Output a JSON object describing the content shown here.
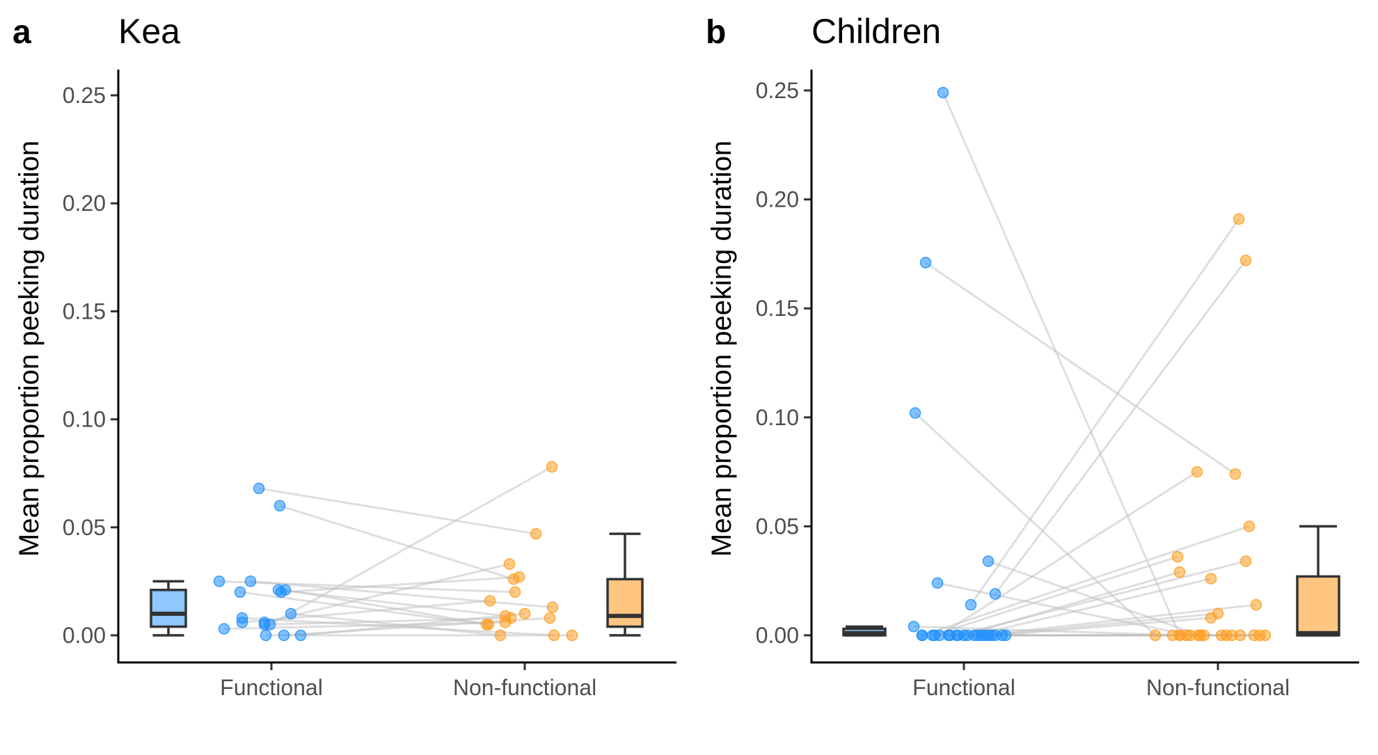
{
  "colors": {
    "functional": "#1e8fff",
    "non_functional": "#ff9e20",
    "box_functional": "#8ec8ff",
    "box_non_functional": "#ffc682",
    "pair_line": "#bebebe"
  },
  "chart_data": [
    {
      "type": "scatter",
      "panel_letter": "a",
      "title": "Kea",
      "xlabel": "",
      "ylabel": "Mean proportion peeking duration",
      "categories": [
        "Functional",
        "Non-functional"
      ],
      "yticks": [
        "0.00",
        "0.05",
        "0.10",
        "0.15",
        "0.20",
        "0.25"
      ],
      "ylim": [
        -0.012,
        0.262
      ],
      "grid": false,
      "pairs": [
        {
          "functional": 0.068,
          "non_functional": 0.047
        },
        {
          "functional": 0.06,
          "non_functional": 0.026
        },
        {
          "functional": 0.025,
          "non_functional": 0.02
        },
        {
          "functional": 0.025,
          "non_functional": 0.013
        },
        {
          "functional": 0.021,
          "non_functional": 0.009
        },
        {
          "functional": 0.021,
          "non_functional": 0.005
        },
        {
          "functional": 0.02,
          "non_functional": 0.005
        },
        {
          "functional": 0.02,
          "non_functional": 0.027
        },
        {
          "functional": 0.01,
          "non_functional": 0.0
        },
        {
          "functional": 0.008,
          "non_functional": 0.0
        },
        {
          "functional": 0.006,
          "non_functional": 0.033
        },
        {
          "functional": 0.006,
          "non_functional": 0.016
        },
        {
          "functional": 0.005,
          "non_functional": 0.008
        },
        {
          "functional": 0.005,
          "non_functional": 0.078
        },
        {
          "functional": 0.003,
          "non_functional": 0.006
        },
        {
          "functional": 0.0,
          "non_functional": 0.0
        },
        {
          "functional": 0.0,
          "non_functional": 0.01
        },
        {
          "functional": 0.0,
          "non_functional": 0.008
        }
      ],
      "boxplots": [
        {
          "series": "Functional",
          "min": 0.0,
          "q1": 0.004,
          "median": 0.01,
          "q3": 0.021,
          "max": 0.025
        },
        {
          "series": "Non-functional",
          "min": 0.0,
          "q1": 0.004,
          "median": 0.009,
          "q3": 0.026,
          "max": 0.047
        }
      ]
    },
    {
      "type": "scatter",
      "panel_letter": "b",
      "title": "Children",
      "xlabel": "",
      "ylabel": "Mean proportion peeking duration",
      "categories": [
        "Functional",
        "Non-functional"
      ],
      "yticks": [
        "0.00",
        "0.05",
        "0.10",
        "0.15",
        "0.20",
        "0.25"
      ],
      "ylim": [
        -0.012,
        0.262
      ],
      "grid": false,
      "pairs": [
        {
          "functional": 0.249,
          "non_functional": 0.0
        },
        {
          "functional": 0.171,
          "non_functional": 0.074
        },
        {
          "functional": 0.102,
          "non_functional": 0.0
        },
        {
          "functional": 0.034,
          "non_functional": 0.0
        },
        {
          "functional": 0.024,
          "non_functional": 0.0
        },
        {
          "functional": 0.019,
          "non_functional": 0.172
        },
        {
          "functional": 0.014,
          "non_functional": 0.191
        },
        {
          "functional": 0.004,
          "non_functional": 0.0
        },
        {
          "functional": 0.0,
          "non_functional": 0.075
        },
        {
          "functional": 0.0,
          "non_functional": 0.05
        },
        {
          "functional": 0.0,
          "non_functional": 0.036
        },
        {
          "functional": 0.0,
          "non_functional": 0.034
        },
        {
          "functional": 0.0,
          "non_functional": 0.029
        },
        {
          "functional": 0.0,
          "non_functional": 0.026
        },
        {
          "functional": 0.0,
          "non_functional": 0.014
        },
        {
          "functional": 0.0,
          "non_functional": 0.01
        },
        {
          "functional": 0.0,
          "non_functional": 0.008
        },
        {
          "functional": 0.0,
          "non_functional": 0.0
        },
        {
          "functional": 0.0,
          "non_functional": 0.0
        },
        {
          "functional": 0.0,
          "non_functional": 0.0
        },
        {
          "functional": 0.0,
          "non_functional": 0.0
        },
        {
          "functional": 0.0,
          "non_functional": 0.0
        },
        {
          "functional": 0.0,
          "non_functional": 0.0
        },
        {
          "functional": 0.0,
          "non_functional": 0.0
        },
        {
          "functional": 0.0,
          "non_functional": 0.0
        },
        {
          "functional": 0.0,
          "non_functional": 0.0
        },
        {
          "functional": 0.0,
          "non_functional": 0.0
        },
        {
          "functional": 0.0,
          "non_functional": 0.0
        }
      ],
      "boxplots": [
        {
          "series": "Functional",
          "min": 0.0,
          "q1": 0.0,
          "median": 0.001,
          "q3": 0.003,
          "max": 0.004
        },
        {
          "series": "Non-functional",
          "min": 0.0,
          "q1": 0.0,
          "median": 0.001,
          "q3": 0.027,
          "max": 0.05
        }
      ]
    }
  ]
}
